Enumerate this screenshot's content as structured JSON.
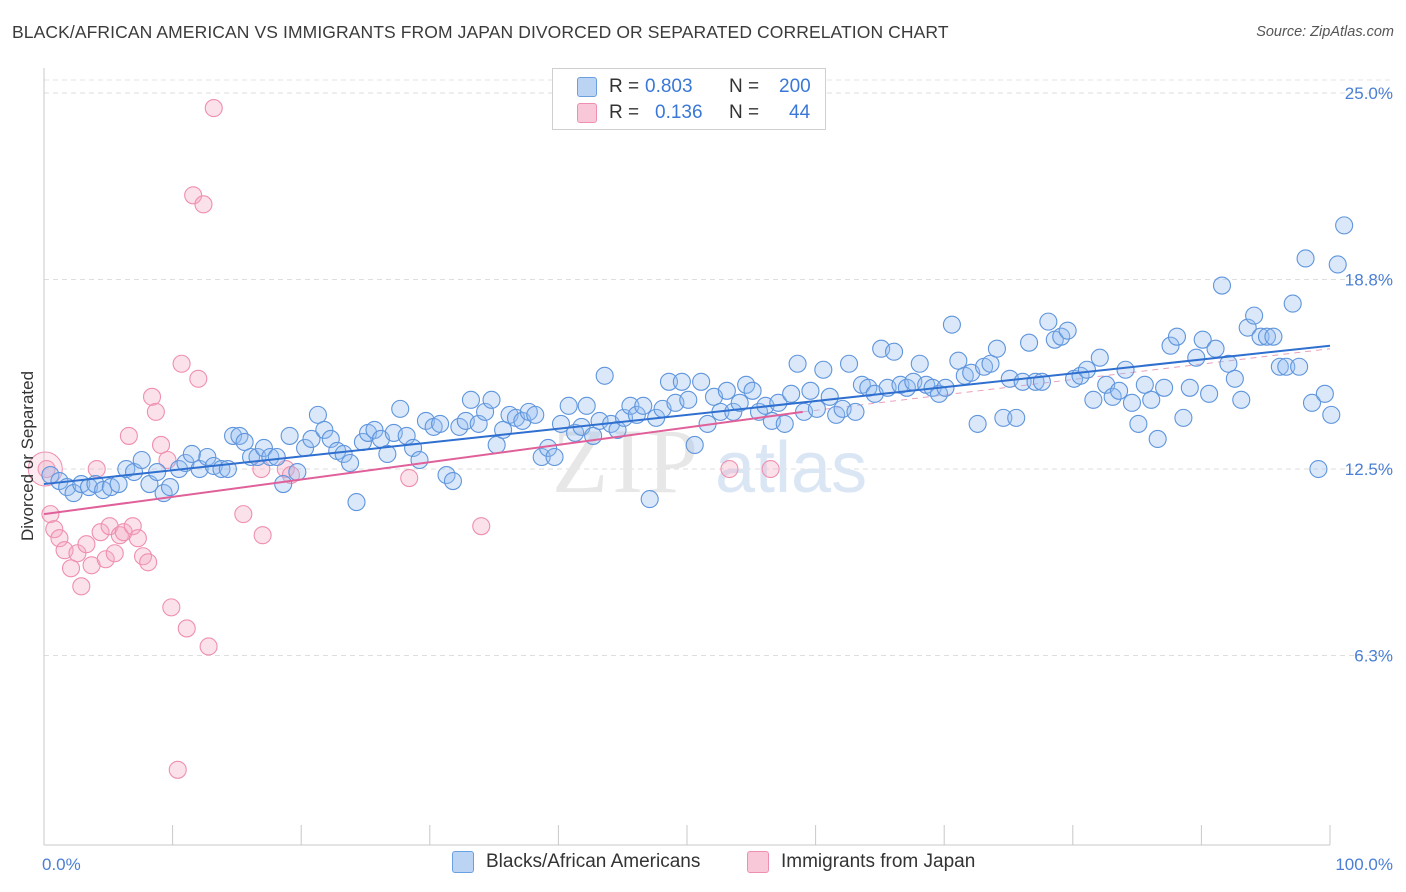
{
  "header": {
    "title": "BLACK/AFRICAN AMERICAN VS IMMIGRANTS FROM JAPAN DIVORCED OR SEPARATED CORRELATION CHART",
    "source": "Source: ZipAtlas.com"
  },
  "legend": {
    "rows": [
      {
        "r_label": "R =",
        "r_value": "0.803",
        "n_label": "N =",
        "n_value": "200",
        "color": "#6a9fe0"
      },
      {
        "r_label": "R =",
        "r_value": "0.136",
        "n_label": "N =",
        "n_value": "44",
        "color": "#ef8fb0"
      }
    ]
  },
  "bottom_legend": {
    "items": [
      {
        "label": "Blacks/African Americans",
        "color": "#6a9fe0"
      },
      {
        "label": "Immigrants from Japan",
        "color": "#ef8fb0"
      }
    ]
  },
  "watermark": {
    "zip": "ZIP",
    "atlas": "atlas"
  },
  "chart_data": {
    "type": "scatter",
    "title": "BLACK/AFRICAN AMERICAN VS IMMIGRANTS FROM JAPAN DIVORCED OR SEPARATED CORRELATION CHART",
    "xlabel": "",
    "ylabel": "Divorced or Separated",
    "xlim": [
      0,
      100
    ],
    "ylim": [
      0,
      25.5
    ],
    "x_tick_labels": [
      "0.0%",
      "100.0%"
    ],
    "y_ticks": [
      6.3,
      12.5,
      18.8,
      25.0
    ],
    "y_tick_labels": [
      "6.3%",
      "12.5%",
      "18.8%",
      "25.0%"
    ],
    "grid": true,
    "legend_position": "top-center",
    "series": [
      {
        "name": "Blacks/African Americans",
        "color": "#6a9fe0",
        "trend": {
          "x": [
            0,
            100
          ],
          "y": [
            12.0,
            16.6
          ]
        },
        "points": [
          [
            0.5,
            12.3
          ],
          [
            1.2,
            12.1
          ],
          [
            1.8,
            11.9
          ],
          [
            2.3,
            11.7
          ],
          [
            2.9,
            12.0
          ],
          [
            3.5,
            11.9
          ],
          [
            4.0,
            12.0
          ],
          [
            4.6,
            11.8
          ],
          [
            5.2,
            11.9
          ],
          [
            5.8,
            12.0
          ],
          [
            6.4,
            12.5
          ],
          [
            7.0,
            12.4
          ],
          [
            7.6,
            12.8
          ],
          [
            8.2,
            12.0
          ],
          [
            8.8,
            12.4
          ],
          [
            9.3,
            11.7
          ],
          [
            9.8,
            11.9
          ],
          [
            10.5,
            12.5
          ],
          [
            11.0,
            12.7
          ],
          [
            11.5,
            13.0
          ],
          [
            12.1,
            12.5
          ],
          [
            12.7,
            12.9
          ],
          [
            13.2,
            12.6
          ],
          [
            13.8,
            12.5
          ],
          [
            14.3,
            12.5
          ],
          [
            14.7,
            13.6
          ],
          [
            15.2,
            13.6
          ],
          [
            15.6,
            13.4
          ],
          [
            16.1,
            12.9
          ],
          [
            16.6,
            12.9
          ],
          [
            17.1,
            13.2
          ],
          [
            17.6,
            12.9
          ],
          [
            18.1,
            12.9
          ],
          [
            18.6,
            12.0
          ],
          [
            19.1,
            13.6
          ],
          [
            19.7,
            12.4
          ],
          [
            20.3,
            13.2
          ],
          [
            20.8,
            13.5
          ],
          [
            21.3,
            14.3
          ],
          [
            21.8,
            13.8
          ],
          [
            22.3,
            13.5
          ],
          [
            22.8,
            13.1
          ],
          [
            23.3,
            13.0
          ],
          [
            23.8,
            12.7
          ],
          [
            24.3,
            11.4
          ],
          [
            24.8,
            13.4
          ],
          [
            25.2,
            13.7
          ],
          [
            25.7,
            13.8
          ],
          [
            26.2,
            13.5
          ],
          [
            26.7,
            13.0
          ],
          [
            27.2,
            13.7
          ],
          [
            27.7,
            14.5
          ],
          [
            28.2,
            13.6
          ],
          [
            28.7,
            13.2
          ],
          [
            29.2,
            12.8
          ],
          [
            29.7,
            14.1
          ],
          [
            30.3,
            13.9
          ],
          [
            30.8,
            14.0
          ],
          [
            31.3,
            12.3
          ],
          [
            31.8,
            12.1
          ],
          [
            32.3,
            13.9
          ],
          [
            32.8,
            14.1
          ],
          [
            33.2,
            14.8
          ],
          [
            33.8,
            14.0
          ],
          [
            34.3,
            14.4
          ],
          [
            34.8,
            14.8
          ],
          [
            35.2,
            13.3
          ],
          [
            35.7,
            13.8
          ],
          [
            36.2,
            14.3
          ],
          [
            36.7,
            14.2
          ],
          [
            37.2,
            14.1
          ],
          [
            37.7,
            14.4
          ],
          [
            38.2,
            14.3
          ],
          [
            38.7,
            12.9
          ],
          [
            39.2,
            13.2
          ],
          [
            39.7,
            12.9
          ],
          [
            40.2,
            14.0
          ],
          [
            40.8,
            14.6
          ],
          [
            41.3,
            13.7
          ],
          [
            41.8,
            13.9
          ],
          [
            42.2,
            14.6
          ],
          [
            42.7,
            13.6
          ],
          [
            43.2,
            14.1
          ],
          [
            43.6,
            15.6
          ],
          [
            44.1,
            14.0
          ],
          [
            44.6,
            13.8
          ],
          [
            45.1,
            14.2
          ],
          [
            45.6,
            14.6
          ],
          [
            46.1,
            14.3
          ],
          [
            46.6,
            14.6
          ],
          [
            47.1,
            11.5
          ],
          [
            47.6,
            14.2
          ],
          [
            48.1,
            14.5
          ],
          [
            48.6,
            15.4
          ],
          [
            49.1,
            14.7
          ],
          [
            49.6,
            15.4
          ],
          [
            50.1,
            14.8
          ],
          [
            50.6,
            13.3
          ],
          [
            51.1,
            15.4
          ],
          [
            51.6,
            14.0
          ],
          [
            52.1,
            14.9
          ],
          [
            52.6,
            14.4
          ],
          [
            53.1,
            15.1
          ],
          [
            53.6,
            14.4
          ],
          [
            54.1,
            14.7
          ],
          [
            54.6,
            15.3
          ],
          [
            55.1,
            15.1
          ],
          [
            55.6,
            14.4
          ],
          [
            56.1,
            14.6
          ],
          [
            56.6,
            14.1
          ],
          [
            57.1,
            14.7
          ],
          [
            57.6,
            14.0
          ],
          [
            58.1,
            15.0
          ],
          [
            58.6,
            16.0
          ],
          [
            59.1,
            14.4
          ],
          [
            59.6,
            15.1
          ],
          [
            60.1,
            14.5
          ],
          [
            60.6,
            15.8
          ],
          [
            61.1,
            14.9
          ],
          [
            61.6,
            14.3
          ],
          [
            62.1,
            14.5
          ],
          [
            62.6,
            16.0
          ],
          [
            63.1,
            14.4
          ],
          [
            63.6,
            15.3
          ],
          [
            64.1,
            15.2
          ],
          [
            64.6,
            15.0
          ],
          [
            65.1,
            16.5
          ],
          [
            65.6,
            15.2
          ],
          [
            66.1,
            16.4
          ],
          [
            66.6,
            15.3
          ],
          [
            67.1,
            15.2
          ],
          [
            67.6,
            15.4
          ],
          [
            68.1,
            16.0
          ],
          [
            68.6,
            15.3
          ],
          [
            69.1,
            15.2
          ],
          [
            69.6,
            15.0
          ],
          [
            70.1,
            15.2
          ],
          [
            70.6,
            17.3
          ],
          [
            71.1,
            16.1
          ],
          [
            71.6,
            15.6
          ],
          [
            72.1,
            15.7
          ],
          [
            72.6,
            14.0
          ],
          [
            73.1,
            15.9
          ],
          [
            73.6,
            16.0
          ],
          [
            74.1,
            16.5
          ],
          [
            74.6,
            14.2
          ],
          [
            75.1,
            15.5
          ],
          [
            75.6,
            14.2
          ],
          [
            76.1,
            15.4
          ],
          [
            76.6,
            16.7
          ],
          [
            77.1,
            15.4
          ],
          [
            77.6,
            15.4
          ],
          [
            78.1,
            17.4
          ],
          [
            78.6,
            16.8
          ],
          [
            79.1,
            16.9
          ],
          [
            79.6,
            17.1
          ],
          [
            80.1,
            15.5
          ],
          [
            80.6,
            15.6
          ],
          [
            81.1,
            15.8
          ],
          [
            81.6,
            14.8
          ],
          [
            82.1,
            16.2
          ],
          [
            82.6,
            15.3
          ],
          [
            83.1,
            14.9
          ],
          [
            83.6,
            15.1
          ],
          [
            84.1,
            15.8
          ],
          [
            84.6,
            14.7
          ],
          [
            85.1,
            14.0
          ],
          [
            85.6,
            15.3
          ],
          [
            86.1,
            14.8
          ],
          [
            86.6,
            13.5
          ],
          [
            87.1,
            15.2
          ],
          [
            87.6,
            16.6
          ],
          [
            88.1,
            16.9
          ],
          [
            88.6,
            14.2
          ],
          [
            89.1,
            15.2
          ],
          [
            89.6,
            16.2
          ],
          [
            90.1,
            16.8
          ],
          [
            90.6,
            15.0
          ],
          [
            91.1,
            16.5
          ],
          [
            91.6,
            18.6
          ],
          [
            92.1,
            16.0
          ],
          [
            92.6,
            15.5
          ],
          [
            93.1,
            14.8
          ],
          [
            93.6,
            17.2
          ],
          [
            94.1,
            17.6
          ],
          [
            94.6,
            16.9
          ],
          [
            95.1,
            16.9
          ],
          [
            95.6,
            16.9
          ],
          [
            96.1,
            15.9
          ],
          [
            96.6,
            15.9
          ],
          [
            97.1,
            18.0
          ],
          [
            97.6,
            15.9
          ],
          [
            98.1,
            19.5
          ],
          [
            98.6,
            14.7
          ],
          [
            99.1,
            12.5
          ],
          [
            99.6,
            15.0
          ],
          [
            100.1,
            14.3
          ],
          [
            100.6,
            19.3
          ],
          [
            101.1,
            20.6
          ]
        ]
      },
      {
        "name": "Immigrants from Japan",
        "color": "#ef8fb0",
        "trend": {
          "x": [
            0,
            59
          ],
          "y": [
            11.0,
            14.4
          ]
        },
        "points": [
          [
            0.2,
            12.5
          ],
          [
            0.5,
            11.0
          ],
          [
            0.8,
            10.5
          ],
          [
            1.2,
            10.2
          ],
          [
            1.6,
            9.8
          ],
          [
            2.1,
            9.2
          ],
          [
            2.6,
            9.7
          ],
          [
            2.9,
            8.6
          ],
          [
            3.3,
            10.0
          ],
          [
            3.7,
            9.3
          ],
          [
            4.1,
            12.5
          ],
          [
            4.4,
            10.4
          ],
          [
            4.8,
            9.5
          ],
          [
            5.1,
            10.6
          ],
          [
            5.5,
            9.7
          ],
          [
            5.9,
            10.3
          ],
          [
            6.2,
            10.4
          ],
          [
            6.6,
            13.6
          ],
          [
            6.9,
            10.6
          ],
          [
            7.3,
            10.2
          ],
          [
            7.7,
            9.6
          ],
          [
            8.1,
            9.4
          ],
          [
            8.4,
            14.9
          ],
          [
            8.7,
            14.4
          ],
          [
            9.1,
            13.3
          ],
          [
            9.6,
            12.8
          ],
          [
            9.9,
            7.9
          ],
          [
            10.4,
            2.5
          ],
          [
            10.7,
            16.0
          ],
          [
            11.1,
            7.2
          ],
          [
            11.6,
            21.6
          ],
          [
            12.0,
            15.5
          ],
          [
            12.4,
            21.3
          ],
          [
            12.8,
            6.6
          ],
          [
            13.2,
            24.5
          ],
          [
            15.5,
            11.0
          ],
          [
            16.9,
            12.5
          ],
          [
            17.0,
            10.3
          ],
          [
            18.8,
            12.5
          ],
          [
            19.2,
            12.3
          ],
          [
            28.4,
            12.2
          ],
          [
            34.0,
            10.6
          ],
          [
            53.3,
            12.5
          ],
          [
            56.5,
            12.5
          ]
        ]
      }
    ]
  }
}
